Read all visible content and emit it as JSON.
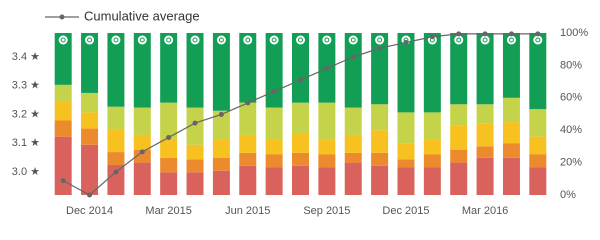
{
  "chart_data": {
    "type": "bar",
    "stacked": true,
    "categories": [
      null,
      "Dec 2014",
      null,
      null,
      "Mar 2015",
      null,
      null,
      "Jun 2015",
      null,
      null,
      "Sep 2015",
      null,
      null,
      "Dec 2015",
      null,
      null,
      "Mar 2016",
      null,
      null
    ],
    "series": [
      {
        "color": "#d9625c",
        "axis": "y2",
        "values": [
          36,
          31,
          18.5,
          20,
          14,
          14,
          15,
          18,
          17,
          18,
          17,
          20,
          18,
          17,
          17,
          20,
          23,
          23,
          17
        ]
      },
      {
        "color": "#ec8a2e",
        "axis": "y2",
        "values": [
          10,
          10,
          8,
          8,
          9,
          8,
          8,
          8,
          8,
          8,
          8,
          6,
          8,
          5,
          8,
          8,
          7,
          9,
          8
        ]
      },
      {
        "color": "#f7c120",
        "axis": "y2",
        "values": [
          12,
          10,
          14,
          9,
          12,
          9,
          11,
          11,
          9,
          12,
          9,
          11,
          14,
          10,
          9,
          15,
          14,
          13,
          11
        ]
      },
      {
        "color": "#c4d34a",
        "axis": "y2",
        "values": [
          10,
          12,
          14,
          17,
          22,
          23,
          18,
          20,
          20,
          19,
          23,
          17,
          16,
          19,
          17,
          13,
          12,
          15,
          17
        ]
      },
      {
        "color": "#139e55",
        "axis": "y2",
        "values": [
          32,
          37,
          45.5,
          46,
          43,
          46,
          48,
          43,
          46,
          43,
          43,
          46,
          44,
          49,
          49,
          44,
          44,
          40,
          47
        ]
      },
      {
        "name": "Cumulative average",
        "type": "line",
        "axis": "y",
        "color": "#666666",
        "values": [
          2.97,
          2.92,
          3.0,
          3.07,
          3.12,
          3.17,
          3.2,
          3.24,
          3.28,
          3.32,
          3.36,
          3.4,
          3.43,
          3.45,
          3.47,
          3.48,
          3.48,
          3.48,
          3.48
        ]
      }
    ],
    "ylim": [
      2.92,
      3.483
    ],
    "yticks": [
      {
        "value": 3.0,
        "label": "3.0 ★"
      },
      {
        "value": 3.1,
        "label": "3.1 ★"
      },
      {
        "value": 3.2,
        "label": "3.2 ★"
      },
      {
        "value": 3.3,
        "label": "3.3 ★"
      },
      {
        "value": 3.4,
        "label": "3.4 ★"
      }
    ],
    "y2lim": [
      0,
      100
    ],
    "y2ticks": [
      {
        "value": 0,
        "label": "0%"
      },
      {
        "value": 20,
        "label": "20%"
      },
      {
        "value": 40,
        "label": "40%"
      },
      {
        "value": 60,
        "label": "60%"
      },
      {
        "value": 80,
        "label": "80%"
      },
      {
        "value": 100,
        "label": "100%"
      }
    ],
    "legend": "top-left"
  }
}
